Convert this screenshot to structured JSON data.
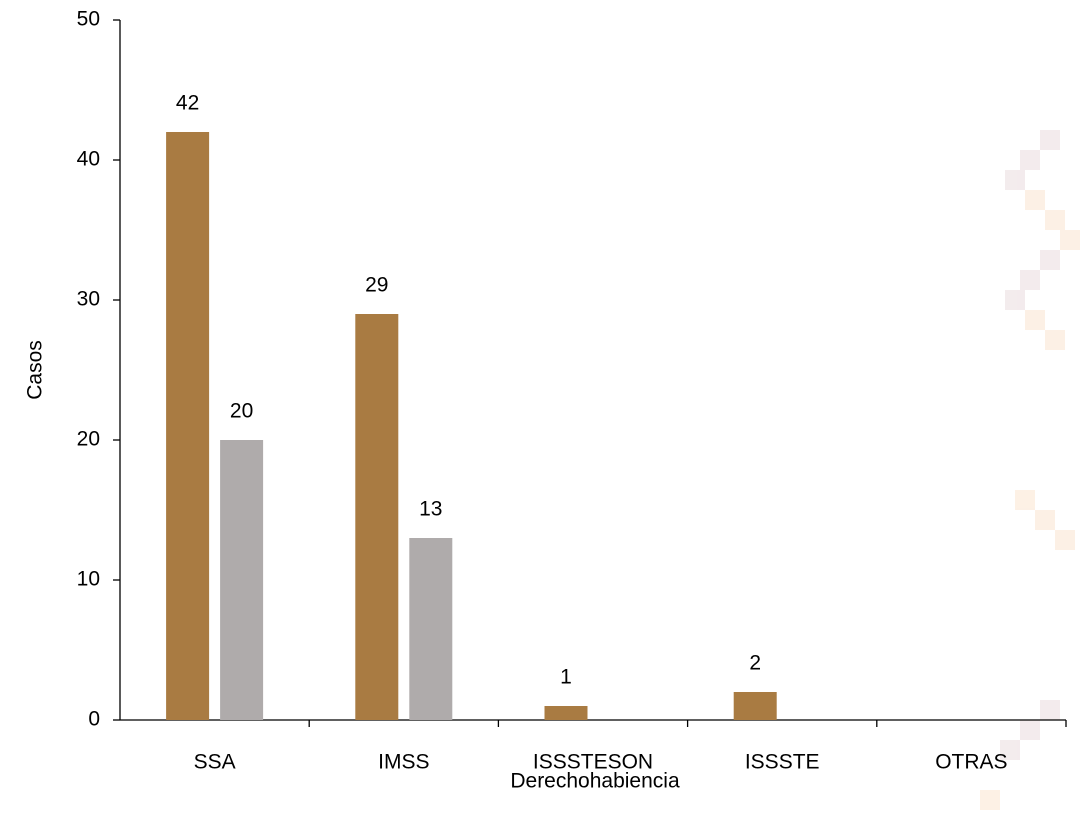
{
  "chart_data": {
    "type": "bar",
    "categories": [
      "SSA",
      "IMSS",
      "ISSSTESON",
      "ISSSTE",
      "OTRAS"
    ],
    "series": [
      {
        "color": "#a97b42",
        "values": [
          42,
          29,
          1,
          2,
          null
        ]
      },
      {
        "color": "#afabab",
        "values": [
          20,
          13,
          null,
          null,
          null
        ]
      }
    ],
    "xlabel": "Derechohabiencia",
    "ylabel": "Casos",
    "ylim": [
      0,
      50
    ],
    "yticks": [
      0,
      10,
      20,
      30,
      40,
      50
    ],
    "grid": false
  }
}
